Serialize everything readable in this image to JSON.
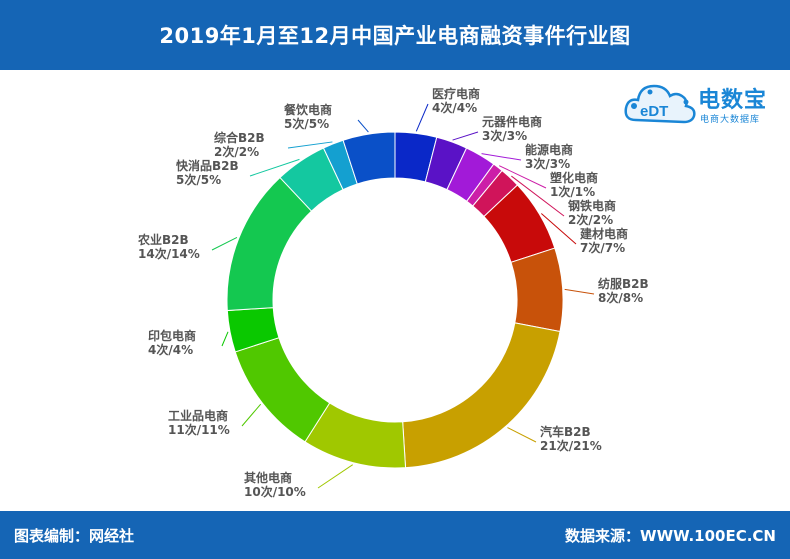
{
  "title": "2019年1月至12月中国产业电商融资事件行业图",
  "footer": {
    "left": "图表编制：网经社",
    "right": "数据来源：WWW.100EC.CN"
  },
  "logo": {
    "main": "电数宝",
    "sub": "电商大数据库",
    "mark": "eDT"
  },
  "colors": {
    "header": "#1565b5",
    "footer": "#1565b5",
    "label_text": "#555555"
  },
  "chart_data": {
    "type": "pie",
    "donut": true,
    "start_angle_deg": 0,
    "direction": "clockwise",
    "slices": [
      {
        "name": "医疗电商",
        "count": 4,
        "percent": 4,
        "label": "4次/4%",
        "color": "#0a28c8"
      },
      {
        "name": "元器件电商",
        "count": 3,
        "percent": 3,
        "label": "3次/3%",
        "color": "#5a12c6"
      },
      {
        "name": "能源电商",
        "count": 3,
        "percent": 3,
        "label": "3次/3%",
        "color": "#a21ad8"
      },
      {
        "name": "塑化电商",
        "count": 1,
        "percent": 1,
        "label": "1次/1%",
        "color": "#cc1ea8"
      },
      {
        "name": "钢铁电商",
        "count": 2,
        "percent": 2,
        "label": "2次/2%",
        "color": "#d0145a"
      },
      {
        "name": "建材电商",
        "count": 7,
        "percent": 7,
        "label": "7次/7%",
        "color": "#c80a0a"
      },
      {
        "name": "纺服B2B",
        "count": 8,
        "percent": 8,
        "label": "8次/8%",
        "color": "#c8520a"
      },
      {
        "name": "汽车B2B",
        "count": 21,
        "percent": 21,
        "label": "21次/21%",
        "color": "#c8a000"
      },
      {
        "name": "其他电商",
        "count": 10,
        "percent": 10,
        "label": "10次/10%",
        "color": "#a0c800"
      },
      {
        "name": "工业品电商",
        "count": 11,
        "percent": 11,
        "label": "11次/11%",
        "color": "#50c800"
      },
      {
        "name": "印包电商",
        "count": 4,
        "percent": 4,
        "label": "4次/4%",
        "color": "#0ac800"
      },
      {
        "name": "农业B2B",
        "count": 14,
        "percent": 14,
        "label": "14次/14%",
        "color": "#14c850"
      },
      {
        "name": "快消品B2B",
        "count": 5,
        "percent": 5,
        "label": "5次/5%",
        "color": "#14c8a0"
      },
      {
        "name": "综合B2B",
        "count": 2,
        "percent": 2,
        "label": "2次/2%",
        "color": "#14a0d0"
      },
      {
        "name": "餐饮电商",
        "count": 5,
        "percent": 5,
        "label": "5次/5%",
        "color": "#0a50c8"
      }
    ]
  }
}
